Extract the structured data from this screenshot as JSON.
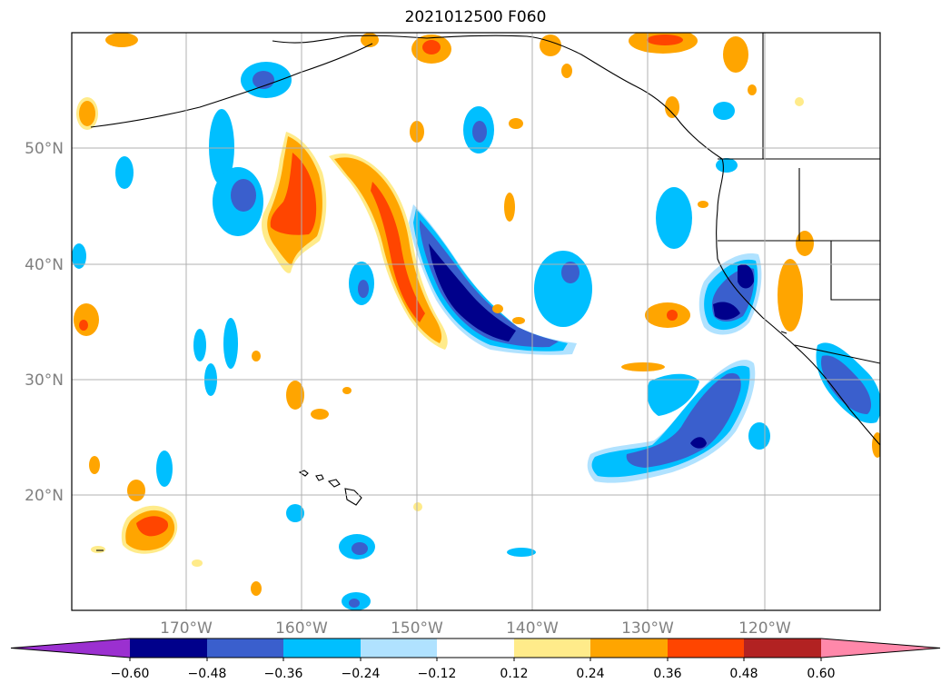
{
  "title": "2021012500 F060",
  "lat_labels": [
    "50°N",
    "40°N",
    "30°N",
    "20°N"
  ],
  "lon_labels": [
    "170°W",
    "160°W",
    "150°W",
    "140°W",
    "130°W",
    "120°W"
  ],
  "colorbar": {
    "ticks": [
      "−0.60",
      "−0.48",
      "−0.36",
      "−0.24",
      "−0.12",
      "0.12",
      "0.24",
      "0.36",
      "0.48",
      "0.60"
    ],
    "colors": [
      "#9b30d0",
      "#00008b",
      "#3a5fcd",
      "#00bfff",
      "#b0e2ff",
      "#ffffff",
      "#ffeb8a",
      "#ffa500",
      "#ff4500",
      "#b22222",
      "#ff88aa"
    ]
  },
  "map_extent": {
    "lon_range": [
      -180,
      -110
    ],
    "lat_range": [
      10,
      60
    ]
  },
  "palette": {
    "dark_blue": "#00008b",
    "mid_blue": "#3a5fcd",
    "deep_sky": "#00bfff",
    "light_blue": "#b0e2ff",
    "light_yellow": "#ffeb8a",
    "orange": "#ffa500",
    "red_orange": "#ff4500",
    "brown": "#b22222"
  }
}
